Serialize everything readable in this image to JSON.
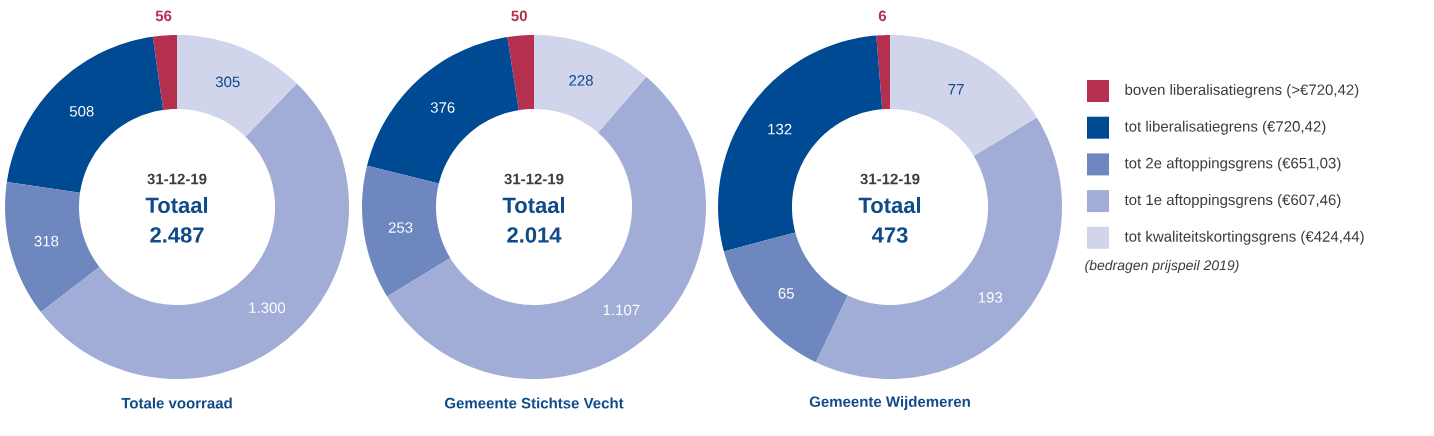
{
  "chart_data": [
    {
      "type": "donut",
      "title": "Totale voorraad",
      "annotations": [
        "31-12-19",
        "Totaal",
        "2.487"
      ],
      "categories": [
        null,
        null,
        null,
        null,
        null
      ],
      "values": [
        56,
        508,
        318,
        1300,
        305
      ],
      "value_labels": [
        "56",
        "508",
        "318",
        "1.300",
        "305"
      ],
      "colors": [
        "#b5304f",
        "#004a93",
        "#6f87bf",
        "#a1add6",
        "#d1d5eb"
      ]
    },
    {
      "type": "donut",
      "title": "Gemeente Stichtse Vecht",
      "annotations": [
        "31-12-19",
        "Totaal",
        "2.014"
      ],
      "categories": [
        null,
        null,
        null,
        null,
        null
      ],
      "values": [
        50,
        376,
        253,
        1107,
        228
      ],
      "value_labels": [
        "50",
        "376",
        "253",
        "1.107",
        "228"
      ],
      "colors": [
        "#b5304f",
        "#004a93",
        "#6f87bf",
        "#a1add6",
        "#d1d5eb"
      ]
    },
    {
      "type": "donut",
      "title": "Gemeente Wijdemeren",
      "annotations": [
        "31-12-19",
        "Totaal",
        "473",
        "(bedragen prijspeil 2019)"
      ],
      "categories": [
        "boven liberalisatiegrens (>€720,42)",
        "tot liberalisatiegrens (€720,42)",
        "tot 2e aftoppingsgrens (€651,03)",
        "tot 1e aftoppingsgrens (€607,46)",
        "tot kwaliteitskortingsgrens (€424,44)"
      ],
      "values": [
        6,
        132,
        65,
        193,
        77
      ],
      "value_labels": [
        "6",
        "132",
        "65",
        "193",
        "77"
      ],
      "colors": [
        "#b5304f",
        "#004a93",
        "#6f87bf",
        "#a1add6",
        "#d1d5eb"
      ],
      "legend": "right"
    }
  ]
}
